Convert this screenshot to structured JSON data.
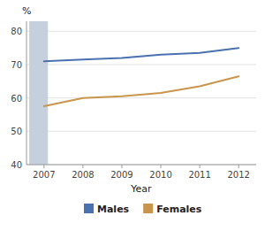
{
  "chart_data": {
    "type": "line",
    "x": [
      2007,
      2008,
      2009,
      2010,
      2011,
      2012
    ],
    "series": [
      {
        "name": "Males",
        "color": "#4a72b0",
        "values": [
          71.0,
          71.5,
          72.0,
          73.0,
          73.5,
          75.0
        ]
      },
      {
        "name": "Females",
        "color": "#c9954c",
        "values": [
          57.5,
          60.0,
          60.5,
          61.5,
          63.5,
          66.5
        ]
      }
    ],
    "x_label": "Year",
    "y_label": "%",
    "xlim": [
      2006.55,
      2012.45
    ],
    "xticks": [
      2007,
      2008,
      2009,
      2010,
      2011,
      2012
    ],
    "ylim": [
      40,
      83
    ],
    "yticks": [
      40,
      50,
      60,
      70,
      80
    ],
    "highlight": {
      "x": [
        2006.62,
        2007.1
      ],
      "color": "#c5d0dc"
    },
    "grid": true,
    "legend": "bottom"
  }
}
